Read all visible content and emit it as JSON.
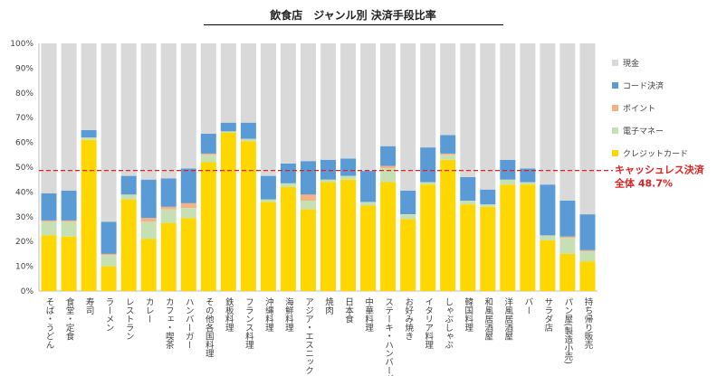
{
  "chart_data": {
    "type": "bar",
    "stacked": true,
    "title": "飲食店　ジャンル別 決済手段比率",
    "ylim": [
      0,
      100
    ],
    "yticks": [
      "0%",
      "10%",
      "20%",
      "30%",
      "40%",
      "50%",
      "60%",
      "70%",
      "80%",
      "90%",
      "100%"
    ],
    "categories": [
      "そば・うどん",
      "食堂・定食",
      "寿司",
      "ラーメン",
      "レストラン",
      "カレー",
      "カフェ・喫茶",
      "ハンバーガー",
      "その他各国料理",
      "鉄板料理",
      "フランス料理",
      "沖縄料理",
      "海鮮料理",
      "アジア・エスニック",
      "焼肉",
      "日本食",
      "中華料理",
      "ステーキ・ハンバーグ",
      "お好み焼き",
      "イタリア料理",
      "しゃぶしゃぶ",
      "韓国料理",
      "和風居酒屋",
      "洋風居酒屋",
      "バー",
      "サラダ店",
      "パン屋(製造小売)",
      "持ち帰り販売"
    ],
    "series": [
      {
        "name": "クレジットカード",
        "color": "#FFD700",
        "values": [
          22.5,
          22,
          61,
          10,
          37,
          21,
          27.5,
          29.5,
          52,
          64,
          60.5,
          36,
          42,
          33,
          44,
          45,
          34.5,
          44,
          29,
          43,
          53,
          35,
          34,
          43,
          43,
          20.5,
          15,
          12
        ]
      },
      {
        "name": "電子マネー",
        "color": "#C6E0B4",
        "values": [
          5.5,
          6,
          1,
          4.5,
          2,
          7,
          5.5,
          4,
          3,
          0.5,
          1,
          1,
          1.5,
          3.5,
          1,
          1.5,
          1.5,
          5.5,
          2,
          1,
          2,
          1.5,
          1,
          2,
          1,
          2,
          6.5,
          4
        ]
      },
      {
        "name": "ポイント",
        "color": "#F4B183",
        "values": [
          0.5,
          0.5,
          0,
          0.5,
          0,
          1.5,
          1,
          2,
          0.5,
          0,
          0,
          0,
          0,
          2.5,
          0,
          0,
          0,
          1,
          0,
          0,
          0.5,
          0,
          0,
          0,
          0,
          0,
          0.5,
          0.5
        ]
      },
      {
        "name": "コード決済",
        "color": "#5B9BD5",
        "values": [
          11,
          12,
          3,
          13,
          7.5,
          15.5,
          11.5,
          14,
          8,
          3.5,
          6.5,
          9.5,
          8,
          13.5,
          8,
          7,
          12.5,
          8,
          9.5,
          14,
          7.5,
          9.5,
          6,
          8,
          5.5,
          20.5,
          14.5,
          14.5
        ]
      },
      {
        "name": "現金",
        "color": "#D9D9D9",
        "values": [
          60.5,
          59.5,
          35,
          72,
          53.5,
          55,
          54.5,
          50.5,
          36.5,
          32,
          32,
          53.5,
          48.5,
          47.5,
          47,
          46.5,
          51.5,
          41.5,
          59.5,
          42,
          37,
          54,
          59,
          47,
          50.5,
          57,
          63.5,
          69
        ]
      }
    ],
    "legend_order": [
      "現金",
      "コード決済",
      "ポイント",
      "電子マネー",
      "クレジットカード"
    ],
    "legend_position": "right",
    "reference_line": {
      "value": 48.7,
      "label_line1": "キャッシュレス決済",
      "label_line2": "全体 48.7%",
      "color": "#E02020"
    }
  }
}
